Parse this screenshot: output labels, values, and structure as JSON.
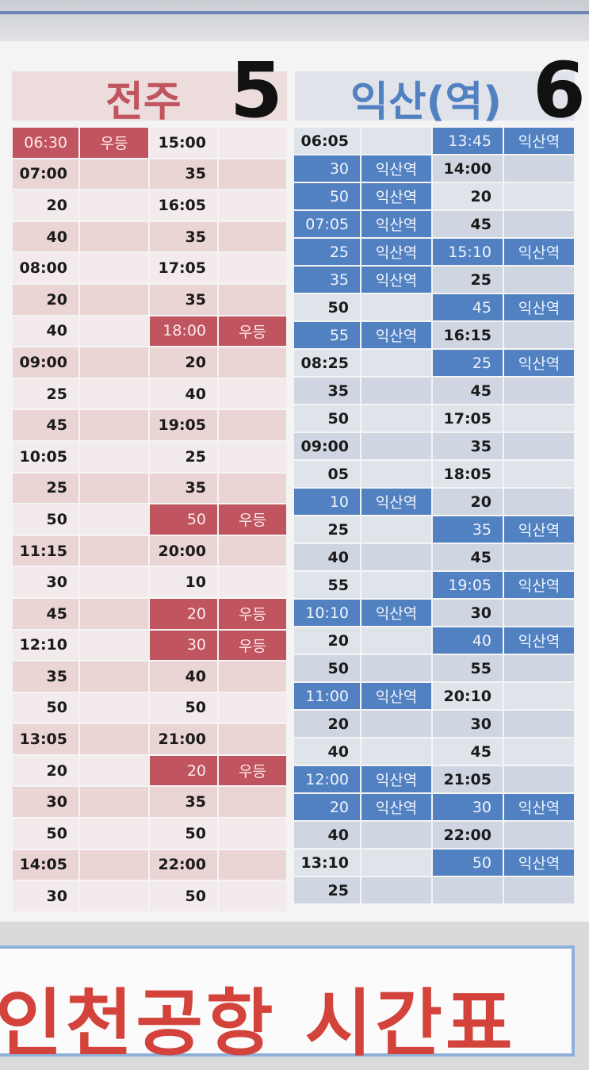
{
  "colors": {
    "jeonju_accent": "#c1555f",
    "iksan_accent": "#5281c2",
    "footer_title": "#d3433c"
  },
  "left": {
    "city": "전주",
    "number": "5",
    "rows": [
      [
        {
          "t": "06:30",
          "n": "우등",
          "h": true
        },
        {
          "t": "15:00",
          "n": "",
          "h": false
        }
      ],
      [
        {
          "t": "07:00",
          "n": "",
          "h": false
        },
        {
          "t": "35",
          "n": "",
          "h": false
        }
      ],
      [
        {
          "t": "20",
          "n": "",
          "h": false
        },
        {
          "t": "16:05",
          "n": "",
          "h": false
        }
      ],
      [
        {
          "t": "40",
          "n": "",
          "h": false
        },
        {
          "t": "35",
          "n": "",
          "h": false
        }
      ],
      [
        {
          "t": "08:00",
          "n": "",
          "h": false
        },
        {
          "t": "17:05",
          "n": "",
          "h": false
        }
      ],
      [
        {
          "t": "20",
          "n": "",
          "h": false
        },
        {
          "t": "35",
          "n": "",
          "h": false
        }
      ],
      [
        {
          "t": "40",
          "n": "",
          "h": false
        },
        {
          "t": "18:00",
          "n": "우등",
          "h": true
        }
      ],
      [
        {
          "t": "09:00",
          "n": "",
          "h": false
        },
        {
          "t": "20",
          "n": "",
          "h": false
        }
      ],
      [
        {
          "t": "25",
          "n": "",
          "h": false
        },
        {
          "t": "40",
          "n": "",
          "h": false
        }
      ],
      [
        {
          "t": "45",
          "n": "",
          "h": false
        },
        {
          "t": "19:05",
          "n": "",
          "h": false
        }
      ],
      [
        {
          "t": "10:05",
          "n": "",
          "h": false
        },
        {
          "t": "25",
          "n": "",
          "h": false
        }
      ],
      [
        {
          "t": "25",
          "n": "",
          "h": false
        },
        {
          "t": "35",
          "n": "",
          "h": false
        }
      ],
      [
        {
          "t": "50",
          "n": "",
          "h": false
        },
        {
          "t": "50",
          "n": "우등",
          "h": true
        }
      ],
      [
        {
          "t": "11:15",
          "n": "",
          "h": false
        },
        {
          "t": "20:00",
          "n": "",
          "h": false
        }
      ],
      [
        {
          "t": "30",
          "n": "",
          "h": false
        },
        {
          "t": "10",
          "n": "",
          "h": false
        }
      ],
      [
        {
          "t": "45",
          "n": "",
          "h": false
        },
        {
          "t": "20",
          "n": "우등",
          "h": true
        }
      ],
      [
        {
          "t": "12:10",
          "n": "",
          "h": false
        },
        {
          "t": "30",
          "n": "우등",
          "h": true
        }
      ],
      [
        {
          "t": "35",
          "n": "",
          "h": false
        },
        {
          "t": "40",
          "n": "",
          "h": false
        }
      ],
      [
        {
          "t": "50",
          "n": "",
          "h": false
        },
        {
          "t": "50",
          "n": "",
          "h": false
        }
      ],
      [
        {
          "t": "13:05",
          "n": "",
          "h": false
        },
        {
          "t": "21:00",
          "n": "",
          "h": false
        }
      ],
      [
        {
          "t": "20",
          "n": "",
          "h": false
        },
        {
          "t": "20",
          "n": "우등",
          "h": true
        }
      ],
      [
        {
          "t": "30",
          "n": "",
          "h": false
        },
        {
          "t": "35",
          "n": "",
          "h": false
        }
      ],
      [
        {
          "t": "50",
          "n": "",
          "h": false
        },
        {
          "t": "50",
          "n": "",
          "h": false
        }
      ],
      [
        {
          "t": "14:05",
          "n": "",
          "h": false
        },
        {
          "t": "22:00",
          "n": "",
          "h": false
        }
      ],
      [
        {
          "t": "30",
          "n": "",
          "h": false
        },
        {
          "t": "50",
          "n": "",
          "h": false
        }
      ]
    ]
  },
  "right": {
    "city": "익산(역)",
    "number": "6",
    "rows": [
      [
        {
          "t": "06:05",
          "n": "",
          "h": false
        },
        {
          "t": "13:45",
          "n": "익산역",
          "h": true
        }
      ],
      [
        {
          "t": "30",
          "n": "익산역",
          "h": true
        },
        {
          "t": "14:00",
          "n": "",
          "h": false
        }
      ],
      [
        {
          "t": "50",
          "n": "익산역",
          "h": true
        },
        {
          "t": "20",
          "n": "",
          "h": false
        }
      ],
      [
        {
          "t": "07:05",
          "n": "익산역",
          "h": true
        },
        {
          "t": "45",
          "n": "",
          "h": false
        }
      ],
      [
        {
          "t": "25",
          "n": "익산역",
          "h": true
        },
        {
          "t": "15:10",
          "n": "익산역",
          "h": true
        }
      ],
      [
        {
          "t": "35",
          "n": "익산역",
          "h": true
        },
        {
          "t": "25",
          "n": "",
          "h": false
        }
      ],
      [
        {
          "t": "50",
          "n": "",
          "h": false
        },
        {
          "t": "45",
          "n": "익산역",
          "h": true
        }
      ],
      [
        {
          "t": "55",
          "n": "익산역",
          "h": true
        },
        {
          "t": "16:15",
          "n": "",
          "h": false
        }
      ],
      [
        {
          "t": "08:25",
          "n": "",
          "h": false
        },
        {
          "t": "25",
          "n": "익산역",
          "h": true
        }
      ],
      [
        {
          "t": "35",
          "n": "",
          "h": false
        },
        {
          "t": "45",
          "n": "",
          "h": false
        }
      ],
      [
        {
          "t": "50",
          "n": "",
          "h": false
        },
        {
          "t": "17:05",
          "n": "",
          "h": false
        }
      ],
      [
        {
          "t": "09:00",
          "n": "",
          "h": false
        },
        {
          "t": "35",
          "n": "",
          "h": false
        }
      ],
      [
        {
          "t": "05",
          "n": "",
          "h": false
        },
        {
          "t": "18:05",
          "n": "",
          "h": false
        }
      ],
      [
        {
          "t": "10",
          "n": "익산역",
          "h": true
        },
        {
          "t": "20",
          "n": "",
          "h": false
        }
      ],
      [
        {
          "t": "25",
          "n": "",
          "h": false
        },
        {
          "t": "35",
          "n": "익산역",
          "h": true
        }
      ],
      [
        {
          "t": "40",
          "n": "",
          "h": false
        },
        {
          "t": "45",
          "n": "",
          "h": false
        }
      ],
      [
        {
          "t": "55",
          "n": "",
          "h": false
        },
        {
          "t": "19:05",
          "n": "익산역",
          "h": true
        }
      ],
      [
        {
          "t": "10:10",
          "n": "익산역",
          "h": true
        },
        {
          "t": "30",
          "n": "",
          "h": false
        }
      ],
      [
        {
          "t": "20",
          "n": "",
          "h": false
        },
        {
          "t": "40",
          "n": "익산역",
          "h": true
        }
      ],
      [
        {
          "t": "50",
          "n": "",
          "h": false
        },
        {
          "t": "55",
          "n": "",
          "h": false
        }
      ],
      [
        {
          "t": "11:00",
          "n": "익산역",
          "h": true
        },
        {
          "t": "20:10",
          "n": "",
          "h": false
        }
      ],
      [
        {
          "t": "20",
          "n": "",
          "h": false
        },
        {
          "t": "30",
          "n": "",
          "h": false
        }
      ],
      [
        {
          "t": "40",
          "n": "",
          "h": false
        },
        {
          "t": "45",
          "n": "",
          "h": false
        }
      ],
      [
        {
          "t": "12:00",
          "n": "익산역",
          "h": true
        },
        {
          "t": "21:05",
          "n": "",
          "h": false
        }
      ],
      [
        {
          "t": "20",
          "n": "익산역",
          "h": true
        },
        {
          "t": "30",
          "n": "익산역",
          "h": true
        }
      ],
      [
        {
          "t": "40",
          "n": "",
          "h": false
        },
        {
          "t": "22:00",
          "n": "",
          "h": false
        }
      ],
      [
        {
          "t": "13:10",
          "n": "",
          "h": false
        },
        {
          "t": "50",
          "n": "익산역",
          "h": true
        }
      ],
      [
        {
          "t": "25",
          "n": "",
          "h": false
        },
        {
          "t": "",
          "n": "",
          "h": false
        }
      ]
    ]
  },
  "footer": {
    "title": "인천공항 시간표"
  }
}
